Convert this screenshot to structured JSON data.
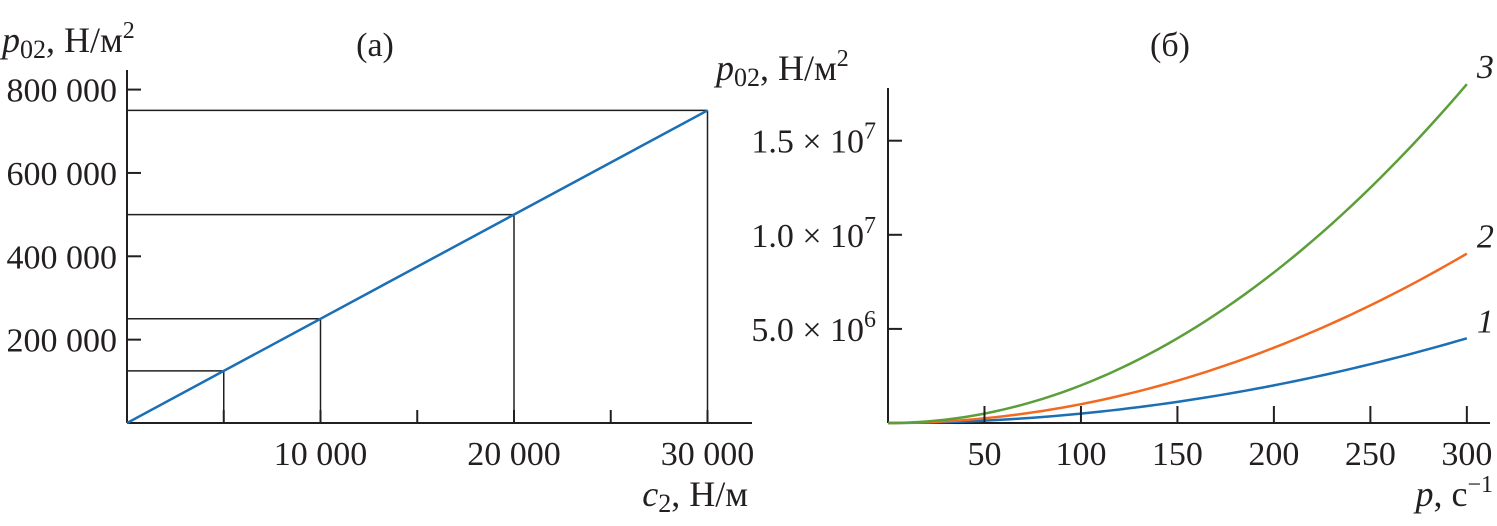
{
  "chart_data": [
    {
      "type": "line",
      "panel_label": "(а)",
      "ylabel": "p02, Н/м²",
      "ylabel_main": "p",
      "ylabel_sub": "02",
      "ylabel_unit": ", Н/м",
      "ylabel_sup": "2",
      "xlabel_main": "c",
      "xlabel_sub": "2",
      "xlabel_unit": ", Н/м",
      "xlim": [
        0,
        32300
      ],
      "ylim": [
        0,
        847000
      ],
      "xticks": [
        10000,
        20000,
        30000
      ],
      "xtick_labels": [
        "10 000",
        "20 000",
        "30 000"
      ],
      "xminor_ticks": [
        5000,
        15000,
        25000
      ],
      "yticks": [
        200000,
        400000,
        600000,
        800000
      ],
      "ytick_labels": [
        "200 000",
        "400 000",
        "600 000",
        "800 000"
      ],
      "series": [
        {
          "x": [
            0,
            30000
          ],
          "y": [
            0,
            750000
          ],
          "color": "#1a6fb5"
        }
      ],
      "guide_points": [
        [
          5000,
          125000
        ],
        [
          10000,
          250000
        ],
        [
          20000,
          500000
        ],
        [
          30000,
          750000
        ]
      ],
      "grid": false
    },
    {
      "type": "line",
      "panel_label": "(б)",
      "ylabel_main": "p",
      "ylabel_sub": "02",
      "ylabel_unit": ", Н/м",
      "ylabel_sup": "2",
      "xlabel_main": "p",
      "xlabel_unit": ", с",
      "xlabel_sup": "−1",
      "xlim": [
        0,
        312
      ],
      "ylim": [
        0,
        17800000
      ],
      "xticks": [
        50,
        100,
        150,
        200,
        250,
        300
      ],
      "xtick_labels": [
        "50",
        "100",
        "150",
        "200",
        "250",
        "300"
      ],
      "yticks": [
        5000000,
        10000000,
        15000000
      ],
      "ytick_labels": [
        {
          "mant": "5.0",
          "times": "× 10",
          "exp": "6"
        },
        {
          "mant": "1.0",
          "times": "× 10",
          "exp": "7"
        },
        {
          "mant": "1.5",
          "times": "× 10",
          "exp": "7"
        }
      ],
      "series": [
        {
          "label": "1",
          "coef": 50,
          "color": "#1a6fb5",
          "x": [
            0,
            50,
            100,
            150,
            200,
            250,
            300
          ],
          "y": [
            0,
            125000,
            500000,
            1125000,
            2000000,
            3125000,
            4500000
          ]
        },
        {
          "label": "2",
          "coef": 100,
          "color": "#f26a21",
          "x": [
            0,
            50,
            100,
            150,
            200,
            250,
            300
          ],
          "y": [
            0,
            250000,
            1000000,
            2250000,
            4000000,
            6250000,
            9000000
          ]
        },
        {
          "label": "3",
          "coef": 200,
          "color": "#5b9e3a",
          "x": [
            0,
            50,
            100,
            150,
            200,
            250,
            300
          ],
          "y": [
            0,
            500000,
            2000000,
            4500000,
            8000000,
            12500000,
            18000000
          ]
        }
      ],
      "grid": false
    }
  ]
}
